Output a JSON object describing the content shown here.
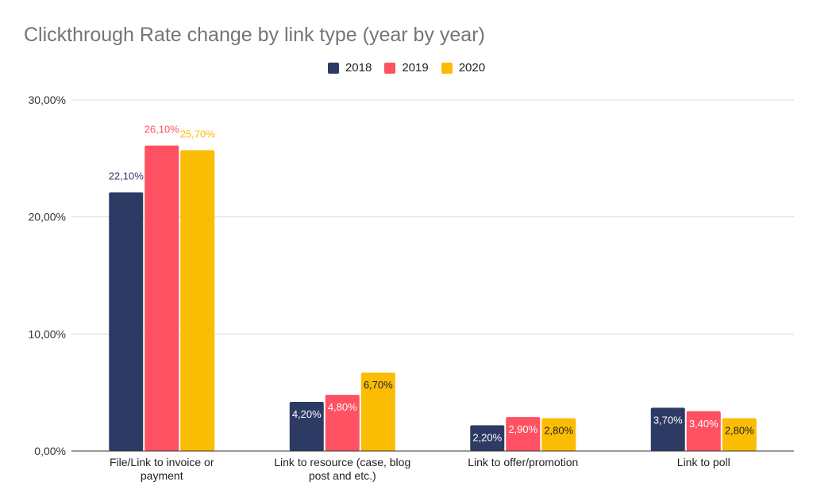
{
  "chart_data": {
    "type": "bar",
    "title": "Clickthrough Rate change by link type (year by year)",
    "categories": [
      [
        "File/Link to invoice or",
        "payment"
      ],
      [
        "Link to resource (case, blog",
        "post and etc.)"
      ],
      [
        "Link to offer/promotion"
      ],
      [
        "Link to poll"
      ]
    ],
    "series": [
      {
        "name": "2018",
        "color": "#2d3a64",
        "values": [
          22.1,
          4.2,
          2.2,
          3.7
        ],
        "labels": [
          "22,10%",
          "4,20%",
          "2,20%",
          "3,70%"
        ]
      },
      {
        "name": "2019",
        "color": "#ff5161",
        "values": [
          26.1,
          4.8,
          2.9,
          3.4
        ],
        "labels": [
          "26,10%",
          "4,80%",
          "2,90%",
          "3,40%"
        ]
      },
      {
        "name": "2020",
        "color": "#fbbc04",
        "values": [
          25.7,
          6.7,
          2.8,
          2.8
        ],
        "labels": [
          "25,70%",
          "6,70%",
          "2,80%",
          "2,80%"
        ]
      }
    ],
    "yticks": [
      0,
      10,
      20,
      30
    ],
    "ytick_labels": [
      "0,00%",
      "10,00%",
      "20,00%",
      "30,00%"
    ],
    "ylim": [
      0,
      30
    ],
    "xlabel": "",
    "ylabel": "",
    "grid": true,
    "legend_position": "top"
  }
}
